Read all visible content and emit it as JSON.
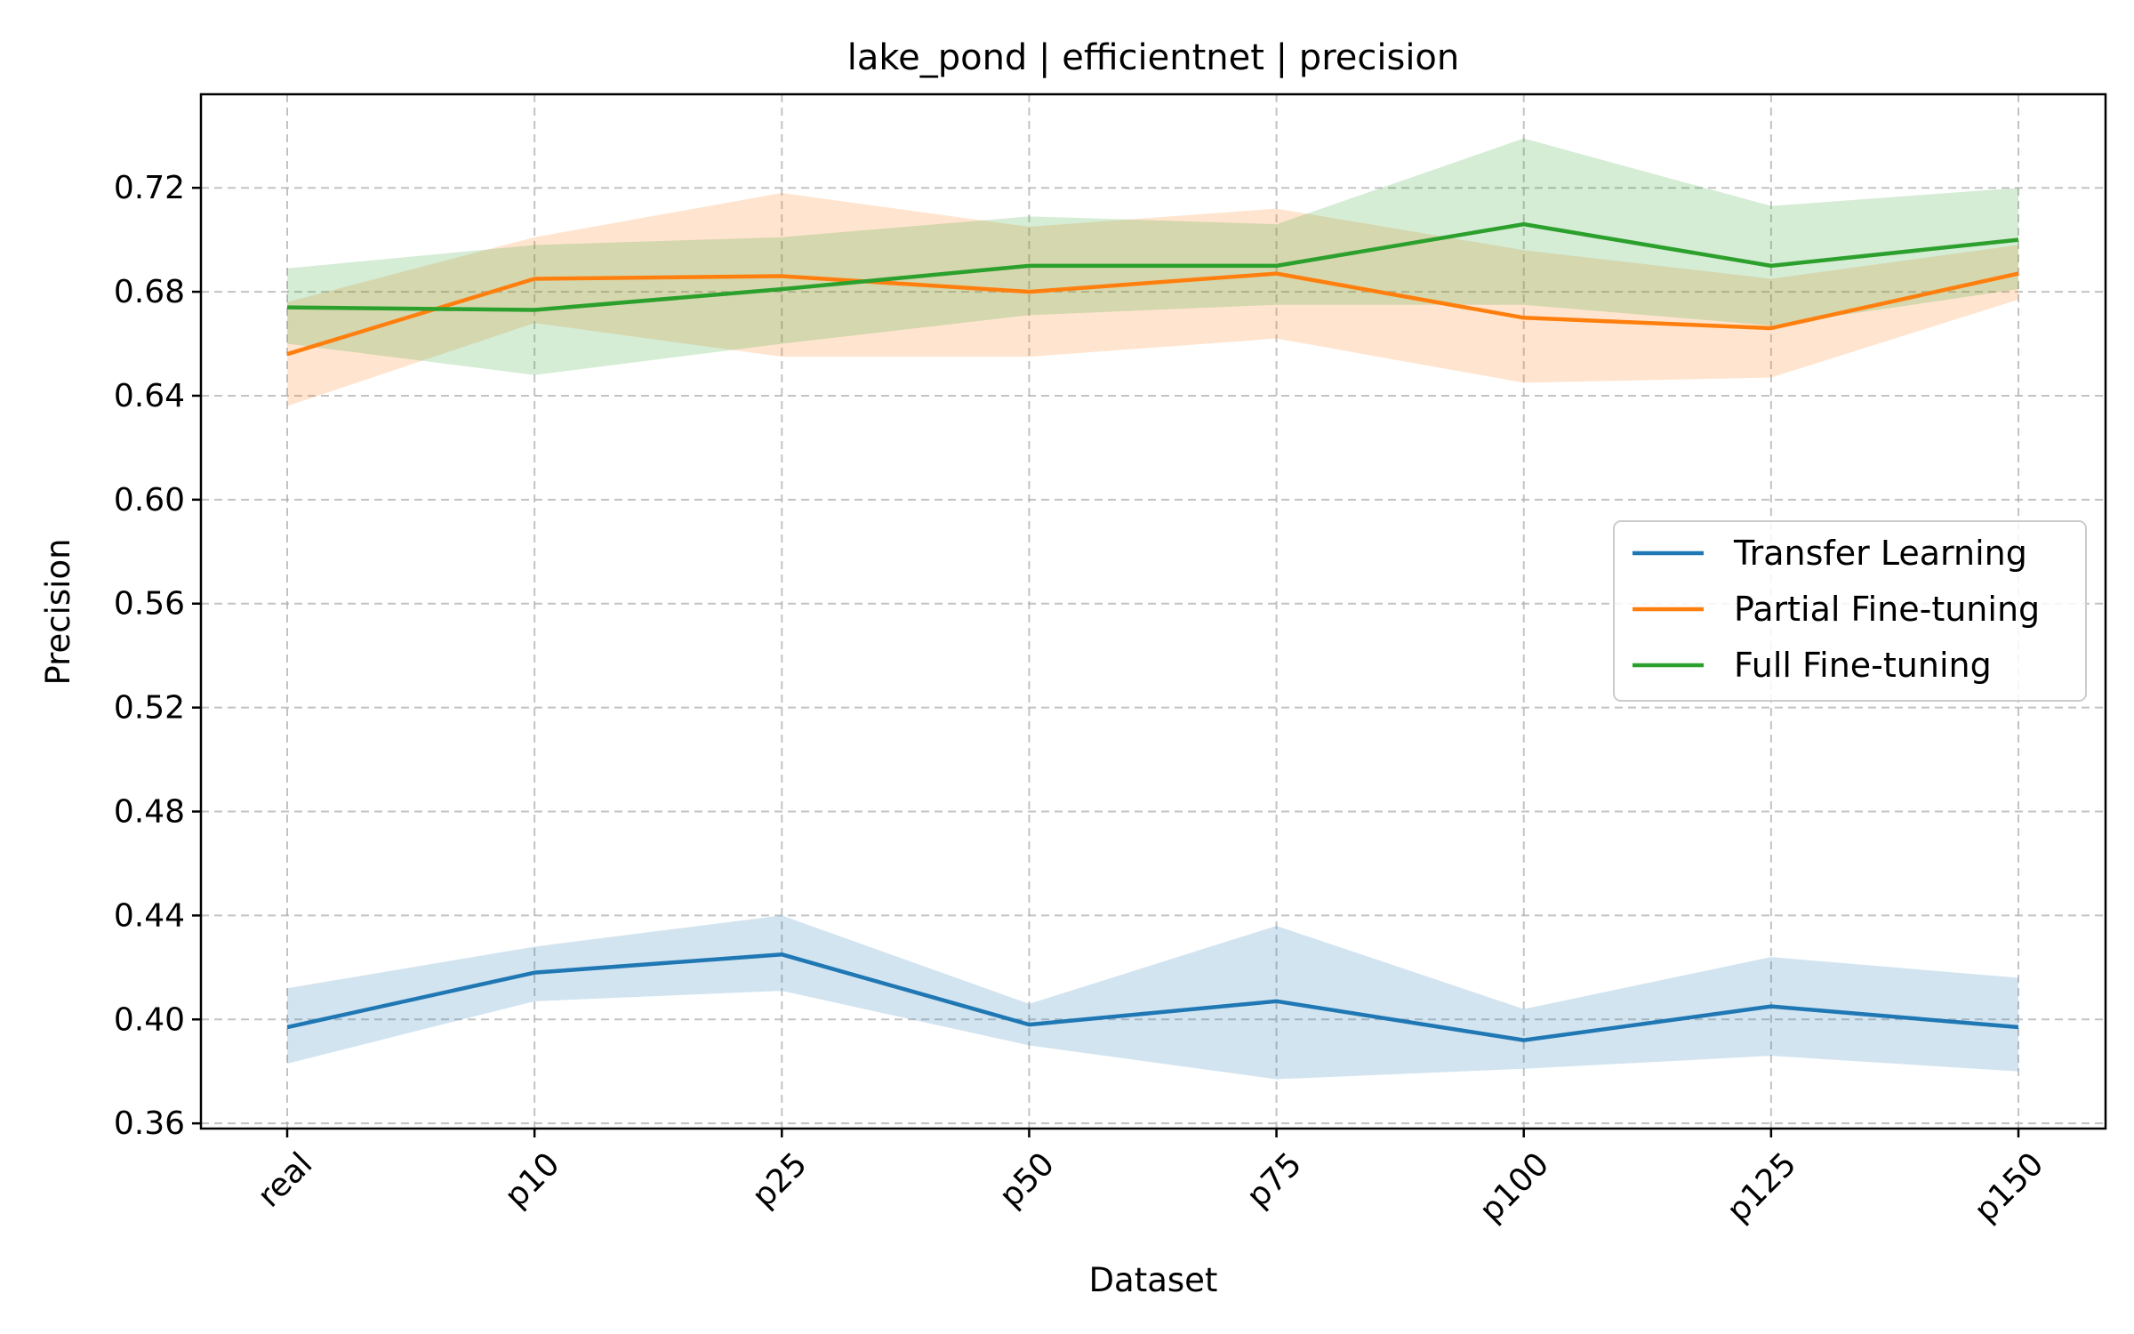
{
  "chart_data": {
    "type": "line",
    "title": "lake_pond | efficientnet | precision",
    "xlabel": "Dataset",
    "ylabel": "Precision",
    "categories": [
      "real",
      "p10",
      "p25",
      "p50",
      "p75",
      "p100",
      "p125",
      "p150"
    ],
    "ylim": [
      0.358,
      0.756
    ],
    "yticks": [
      0.36,
      0.4,
      0.44,
      0.48,
      0.52,
      0.56,
      0.6,
      0.64,
      0.68,
      0.72
    ],
    "ytick_labels": [
      "0.36",
      "0.40",
      "0.44",
      "0.48",
      "0.52",
      "0.56",
      "0.60",
      "0.64",
      "0.68",
      "0.72"
    ],
    "grid": true,
    "legend_position": "center-right",
    "series": [
      {
        "name": "Transfer Learning",
        "color": "#1f77b4",
        "values": [
          0.397,
          0.418,
          0.425,
          0.398,
          0.407,
          0.392,
          0.405,
          0.397
        ],
        "lower": [
          0.383,
          0.407,
          0.411,
          0.39,
          0.377,
          0.381,
          0.386,
          0.38
        ],
        "upper": [
          0.412,
          0.428,
          0.44,
          0.406,
          0.436,
          0.404,
          0.424,
          0.416
        ]
      },
      {
        "name": "Partial Fine-tuning",
        "color": "#ff7f0e",
        "values": [
          0.656,
          0.685,
          0.686,
          0.68,
          0.687,
          0.67,
          0.666,
          0.687
        ],
        "lower": [
          0.636,
          0.668,
          0.655,
          0.655,
          0.662,
          0.645,
          0.647,
          0.677
        ],
        "upper": [
          0.676,
          0.701,
          0.718,
          0.705,
          0.712,
          0.696,
          0.685,
          0.698
        ]
      },
      {
        "name": "Full Fine-tuning",
        "color": "#2ca02c",
        "values": [
          0.674,
          0.673,
          0.681,
          0.69,
          0.69,
          0.706,
          0.69,
          0.7
        ],
        "lower": [
          0.66,
          0.648,
          0.66,
          0.671,
          0.675,
          0.675,
          0.667,
          0.681
        ],
        "upper": [
          0.689,
          0.698,
          0.701,
          0.709,
          0.706,
          0.739,
          0.713,
          0.72
        ]
      }
    ]
  }
}
